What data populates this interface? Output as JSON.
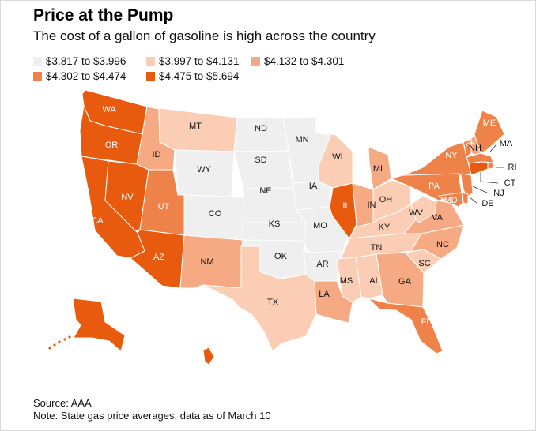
{
  "title": "Price at the Pump",
  "subtitle": "The cost of a gallon of gasoline is high across the country",
  "legend": [
    {
      "label": "$3.817 to $3.996",
      "color": "#efefef"
    },
    {
      "label": "$3.997 to $4.131",
      "color": "#fbcdb4"
    },
    {
      "label": "$4.132 to $4.301",
      "color": "#f6aa83"
    },
    {
      "label": "$4.302 to $4.474",
      "color": "#ef8248"
    },
    {
      "label": "$4.475 to $5.694",
      "color": "#e85a0d"
    }
  ],
  "states": [
    {
      "abbr": "WA",
      "bin": 4
    },
    {
      "abbr": "OR",
      "bin": 4
    },
    {
      "abbr": "CA",
      "bin": 4
    },
    {
      "abbr": "NV",
      "bin": 4
    },
    {
      "abbr": "ID",
      "bin": 2
    },
    {
      "abbr": "MT",
      "bin": 1
    },
    {
      "abbr": "WY",
      "bin": 0
    },
    {
      "abbr": "UT",
      "bin": 3
    },
    {
      "abbr": "AZ",
      "bin": 4
    },
    {
      "abbr": "CO",
      "bin": 0
    },
    {
      "abbr": "NM",
      "bin": 2
    },
    {
      "abbr": "ND",
      "bin": 0
    },
    {
      "abbr": "SD",
      "bin": 0
    },
    {
      "abbr": "NE",
      "bin": 0
    },
    {
      "abbr": "KS",
      "bin": 0
    },
    {
      "abbr": "OK",
      "bin": 0
    },
    {
      "abbr": "TX",
      "bin": 1
    },
    {
      "abbr": "MN",
      "bin": 0
    },
    {
      "abbr": "IA",
      "bin": 0
    },
    {
      "abbr": "MO",
      "bin": 0
    },
    {
      "abbr": "AR",
      "bin": 0
    },
    {
      "abbr": "LA",
      "bin": 2
    },
    {
      "abbr": "WI",
      "bin": 1
    },
    {
      "abbr": "IL",
      "bin": 4
    },
    {
      "abbr": "MI",
      "bin": 2
    },
    {
      "abbr": "IN",
      "bin": 2
    },
    {
      "abbr": "OH",
      "bin": 1
    },
    {
      "abbr": "KY",
      "bin": 1
    },
    {
      "abbr": "TN",
      "bin": 1
    },
    {
      "abbr": "MS",
      "bin": 1
    },
    {
      "abbr": "AL",
      "bin": 1
    },
    {
      "abbr": "GA",
      "bin": 2
    },
    {
      "abbr": "FL",
      "bin": 3
    },
    {
      "abbr": "SC",
      "bin": 1
    },
    {
      "abbr": "NC",
      "bin": 2
    },
    {
      "abbr": "VA",
      "bin": 2
    },
    {
      "abbr": "WV",
      "bin": 1
    },
    {
      "abbr": "PA",
      "bin": 3
    },
    {
      "abbr": "NY",
      "bin": 3
    },
    {
      "abbr": "VT",
      "bin": 3
    },
    {
      "abbr": "NH",
      "bin": 2
    },
    {
      "abbr": "ME",
      "bin": 3
    },
    {
      "abbr": "MA",
      "bin": 3
    },
    {
      "abbr": "RI",
      "bin": 3
    },
    {
      "abbr": "CT",
      "bin": 4
    },
    {
      "abbr": "NJ",
      "bin": 3
    },
    {
      "abbr": "DE",
      "bin": 3
    },
    {
      "abbr": "MD",
      "bin": 3
    },
    {
      "abbr": "AK",
      "bin": 4
    },
    {
      "abbr": "HI",
      "bin": 4
    }
  ],
  "footer": {
    "source": "Source: AAA",
    "note": "Note: State gas price averages, data as of March 10"
  }
}
